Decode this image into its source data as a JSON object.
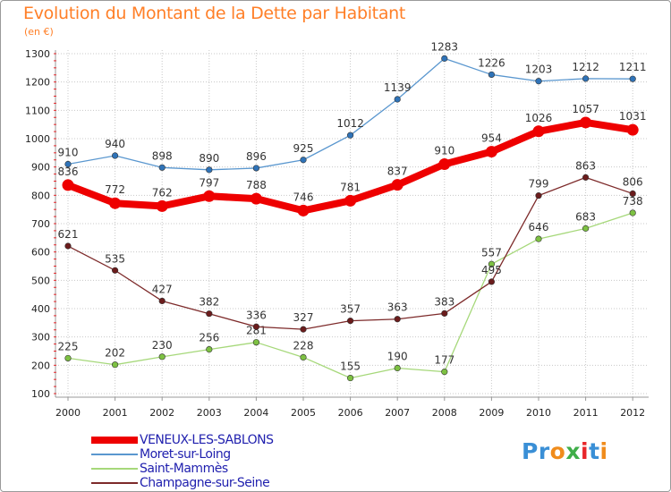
{
  "title": "Evolution du Montant de la Dette par Habitant",
  "unit_label": "(en €)",
  "logo_text": "Proxiti",
  "colors": {
    "title": "#ff7f27",
    "legend_text": "#1f1fae",
    "grid": "#c8c8c8",
    "tick_red": "#e8262a"
  },
  "chart_data": {
    "type": "line",
    "categories": [
      "2000",
      "2001",
      "2002",
      "2003",
      "2004",
      "2005",
      "2006",
      "2007",
      "2008",
      "2009",
      "2010",
      "2011",
      "2012"
    ],
    "ylim": [
      100,
      1300
    ],
    "yticks": [
      100,
      200,
      300,
      400,
      500,
      600,
      700,
      800,
      900,
      1000,
      1100,
      1200,
      1300
    ],
    "grid": true,
    "legend_position": "bottom",
    "series": [
      {
        "name": "Moret-sur-Loing",
        "color": "#5a97cf",
        "point_color": "#2f73b8",
        "width": "thin",
        "values": [
          910,
          940,
          898,
          890,
          896,
          925,
          1012,
          1139,
          1283,
          1226,
          1203,
          1212,
          1211
        ]
      },
      {
        "name": "Saint-Mammès",
        "color": "#a6d87a",
        "point_color": "#7dc142",
        "width": "thin",
        "values": [
          225,
          202,
          230,
          256,
          281,
          228,
          155,
          190,
          177,
          557,
          646,
          683,
          738
        ]
      },
      {
        "name": "Champagne-sur-Seine",
        "color": "#7d2a2a",
        "point_color": "#6b1c1c",
        "width": "thin",
        "values": [
          621,
          535,
          427,
          382,
          336,
          327,
          357,
          363,
          383,
          495,
          799,
          863,
          806
        ]
      },
      {
        "name": "VENEUX-LES-SABLONS",
        "color": "#ee0000",
        "point_color": "#ee0000",
        "width": "thick",
        "values": [
          836,
          772,
          762,
          797,
          788,
          746,
          781,
          837,
          910,
          954,
          1026,
          1057,
          1031
        ]
      }
    ],
    "legend_order": [
      "VENEUX-LES-SABLONS",
      "Moret-sur-Loing",
      "Saint-Mammès",
      "Champagne-sur-Seine"
    ]
  }
}
